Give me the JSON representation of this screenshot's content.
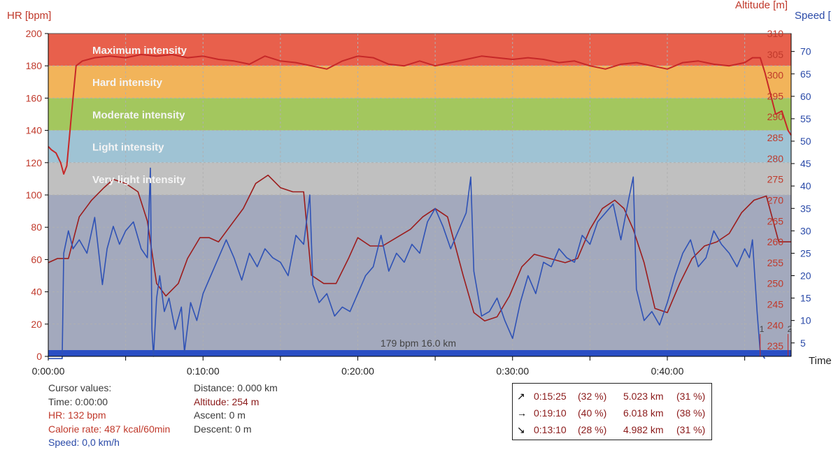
{
  "chart_data": {
    "type": "line",
    "axes": {
      "hr": {
        "label": "HR [bpm]",
        "ticks": [
          0,
          20,
          40,
          60,
          80,
          100,
          120,
          140,
          160,
          180,
          200
        ],
        "range": [
          0,
          200
        ],
        "color": "#c0392b"
      },
      "altitude": {
        "label": "Altitude [m]",
        "ticks": [
          235,
          240,
          245,
          250,
          255,
          260,
          265,
          270,
          275,
          280,
          285,
          290,
          295,
          300,
          305,
          310
        ],
        "range": [
          232.5,
          310
        ],
        "color": "#c0392b"
      },
      "speed": {
        "label": "Speed [",
        "ticks": [
          5,
          10,
          15,
          20,
          25,
          30,
          35,
          40,
          45,
          50,
          55,
          60,
          65,
          70
        ],
        "range": [
          2,
          74
        ],
        "color": "#2a4aa8"
      },
      "time": {
        "label": "Time",
        "ticks": [
          "0:00:00",
          "0:10:00",
          "0:20:00",
          "0:30:00",
          "0:40:00"
        ],
        "range_min": [
          0,
          48
        ]
      }
    },
    "zones": [
      {
        "name": "Maximum intensity",
        "from": 180,
        "to": 200,
        "color": "#e8604c"
      },
      {
        "name": "Hard intensity",
        "from": 160,
        "to": 180,
        "color": "#f2b45a"
      },
      {
        "name": "Moderate intensity",
        "from": 140,
        "to": 160,
        "color": "#a3c75e"
      },
      {
        "name": "Light intensity",
        "from": 120,
        "to": 140,
        "color": "#9fc3d4"
      },
      {
        "name": "Very light intensity",
        "from": 100,
        "to": 120,
        "color": "#c0c0c0"
      },
      {
        "name": "",
        "from": 0,
        "to": 100,
        "color": "#a3a9bd"
      }
    ],
    "marker_text": "179 bpm 16.0 km",
    "lap_labels": [
      "1",
      "2"
    ],
    "series": [
      {
        "name": "HR",
        "axis": "hr",
        "color": "#c62828",
        "x": [
          0,
          0.2,
          0.5,
          0.8,
          1.0,
          1.2,
          1.5,
          1.8,
          2.2,
          3,
          4,
          5,
          6,
          7,
          8,
          9,
          10,
          11,
          12,
          13,
          14,
          15,
          16,
          17,
          18,
          19,
          20,
          21,
          22,
          23,
          24,
          25,
          26,
          27,
          28,
          29,
          30,
          31,
          32,
          33,
          34,
          35,
          36,
          37,
          38,
          39,
          40,
          41,
          42,
          43,
          44,
          45,
          45.5,
          46,
          46.3,
          46.6,
          47,
          47.4,
          47.8,
          48
        ],
        "y": [
          130,
          128,
          126,
          120,
          113,
          118,
          150,
          180,
          183,
          185,
          186,
          185,
          187,
          186,
          187,
          185,
          186,
          184,
          183,
          181,
          186,
          183,
          182,
          180,
          178,
          183,
          186,
          185,
          181,
          180,
          183,
          180,
          182,
          184,
          186,
          185,
          184,
          185,
          184,
          182,
          183,
          180,
          178,
          181,
          182,
          180,
          178,
          182,
          183,
          181,
          180,
          182,
          185,
          185,
          176,
          165,
          150,
          152,
          140,
          137
        ]
      },
      {
        "name": "Altitude",
        "axis": "altitude",
        "color": "#9c1c1c",
        "x": [
          0,
          0.6,
          1.3,
          2,
          2.8,
          3.6,
          4.2,
          5,
          5.8,
          6.4,
          7,
          7.6,
          8.4,
          9,
          9.8,
          10.4,
          11,
          11.8,
          12.6,
          13.4,
          14.2,
          15,
          15.8,
          16.5,
          17,
          17.8,
          18.6,
          19.4,
          20,
          20.8,
          21.6,
          22.5,
          23.4,
          24.2,
          25,
          25.8,
          26.3,
          26.8,
          27.5,
          28.2,
          29,
          29.8,
          30.6,
          31.4,
          32.4,
          33.4,
          34.2,
          35,
          35.8,
          36.6,
          37.2,
          37.8,
          38.5,
          39.2,
          40,
          40.8,
          41.6,
          42.4,
          43.2,
          44,
          44.8,
          45.6,
          46.4,
          47.2,
          48
        ],
        "y": [
          255,
          256,
          256,
          266,
          270,
          273,
          275,
          274,
          272,
          265,
          250,
          247,
          250,
          256,
          261,
          261,
          260,
          264,
          268,
          274,
          276,
          273,
          272,
          272,
          252,
          250,
          250,
          256,
          261,
          259,
          259,
          261,
          263,
          266,
          268,
          266,
          259,
          252,
          243,
          241,
          242,
          247,
          254,
          257,
          256,
          255,
          256,
          263,
          268,
          270,
          268,
          263,
          255,
          244,
          243,
          250,
          256,
          259,
          260,
          262,
          267,
          270,
          271,
          260,
          260
        ]
      },
      {
        "name": "Speed",
        "axis": "speed",
        "color": "#2f52b5",
        "x": [
          0,
          0.9,
          1.0,
          1.3,
          1.6,
          2,
          2.5,
          3,
          3.5,
          3.8,
          4.2,
          4.6,
          5,
          5.5,
          6,
          6.4,
          6.6,
          6.7,
          6.8,
          7,
          7.2,
          7.5,
          7.8,
          8.2,
          8.6,
          8.8,
          9.2,
          9.6,
          10,
          10.5,
          11,
          11.5,
          12,
          12.5,
          13,
          13.5,
          14,
          14.5,
          15,
          15.5,
          16,
          16.5,
          16.9,
          17.1,
          17.5,
          18,
          18.5,
          19,
          19.5,
          20,
          20.5,
          21,
          21.5,
          22,
          22.5,
          23,
          23.5,
          24,
          24.5,
          25,
          25.5,
          26,
          26.5,
          27,
          27.3,
          27.5,
          28,
          28.5,
          29,
          29.5,
          30,
          30.5,
          31,
          31.5,
          32,
          32.5,
          33,
          33.5,
          34,
          34.5,
          35,
          35.5,
          36,
          36.5,
          37,
          37.5,
          37.8,
          38,
          38.5,
          39,
          39.5,
          40,
          40.5,
          41,
          41.5,
          42,
          42.5,
          43,
          43.5,
          44,
          44.5,
          45,
          45.3,
          45.5,
          45.8,
          46,
          46.3
        ],
        "y": [
          1.5,
          1.5,
          25,
          30,
          26,
          28,
          25,
          33,
          18,
          26,
          31,
          27,
          30,
          32,
          26,
          24,
          44,
          8,
          2,
          15,
          20,
          12,
          15,
          8,
          13,
          3,
          14,
          10,
          16,
          20,
          24,
          28,
          24,
          19,
          25,
          22,
          26,
          24,
          23,
          20,
          29,
          27,
          38,
          18,
          14,
          16,
          11,
          13,
          12,
          16,
          20,
          22,
          29,
          21,
          25,
          23,
          27,
          25,
          32,
          35,
          31,
          26,
          30,
          34,
          42,
          21,
          11,
          12,
          15,
          10,
          6,
          14,
          20,
          16,
          23,
          22,
          26,
          24,
          23,
          29,
          27,
          32,
          34,
          36,
          28,
          37,
          42,
          17,
          10,
          12,
          9,
          14,
          20,
          25,
          28,
          22,
          24,
          30,
          27,
          25,
          22,
          26,
          24,
          28,
          12,
          3,
          1.5
        ]
      }
    ]
  },
  "info": {
    "col1": [
      "Cursor values:",
      "Time: 0:00:00",
      "HR: 132 bpm",
      "Calorie rate: 487 kcal/60min",
      "Speed: 0,0 km/h"
    ],
    "col2": [
      "Distance: 0.000 km",
      "Altitude: 254 m",
      "Ascent: 0 m",
      "Descent: 0 m"
    ]
  },
  "stats": [
    {
      "arrow": "↗",
      "time": "0:15:25",
      "time_pct": "(32 %)",
      "dist": "5.023 km",
      "dist_pct": "(31 %)"
    },
    {
      "arrow": "→",
      "time": "0:19:10",
      "time_pct": "(40 %)",
      "dist": "6.018 km",
      "dist_pct": "(38 %)"
    },
    {
      "arrow": "↘",
      "time": "0:13:10",
      "time_pct": "(28 %)",
      "dist": "4.982 km",
      "dist_pct": "(31 %)"
    }
  ]
}
